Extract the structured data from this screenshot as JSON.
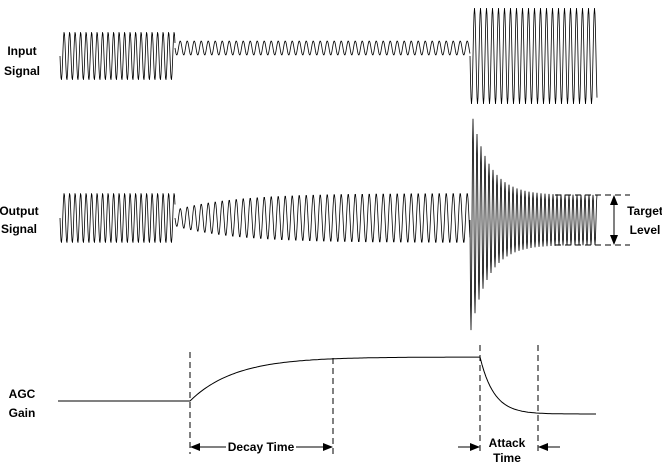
{
  "labels": {
    "input_signal": [
      "Input",
      "Signal"
    ],
    "output_signal": [
      "Output",
      "Signal"
    ],
    "agc_gain": [
      "AGC",
      "Gain"
    ],
    "target_level": [
      "Target",
      "Level"
    ],
    "decay_time": "Decay Time",
    "attack_time": [
      "Attack",
      "Time"
    ]
  }
}
